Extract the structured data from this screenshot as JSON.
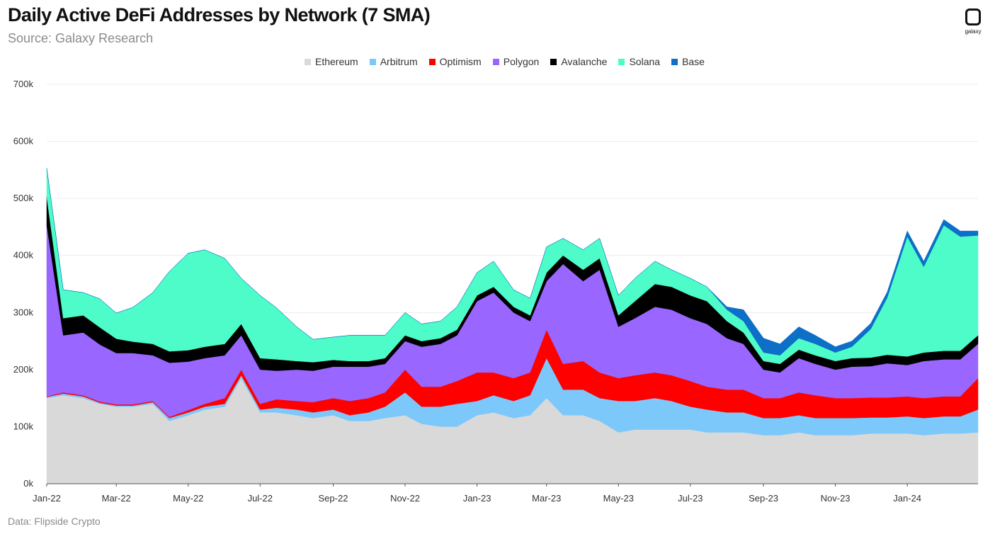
{
  "title": "Daily Active DeFi Addresses by Network (7 SMA)",
  "subtitle": "Source: Galaxy Research",
  "source_note": "Data: Flipside Crypto",
  "logo": {
    "icon": "galaxy-logo-icon",
    "text": "galaxy"
  },
  "chart_data": {
    "type": "area",
    "stacked": true,
    "title": "Daily Active DeFi Addresses by Network (7 SMA)",
    "xlabel": "",
    "ylabel": "",
    "ylim": [
      0,
      700000
    ],
    "yticks": [
      0,
      100000,
      200000,
      300000,
      400000,
      500000,
      600000,
      700000
    ],
    "ytick_labels": [
      "0k",
      "100k",
      "200k",
      "300k",
      "400k",
      "500k",
      "600k",
      "700k"
    ],
    "xtick_labels": [
      "Jan-22",
      "Mar-22",
      "May-22",
      "Jul-22",
      "Sep-22",
      "Nov-22",
      "Jan-23",
      "Mar-23",
      "May-23",
      "Jul-23",
      "Sep-23",
      "Nov-23",
      "Jan-24"
    ],
    "grid": true,
    "legend_position": "top",
    "x": [
      "2022-01-01",
      "2022-01-15",
      "2022-02-01",
      "2022-02-15",
      "2022-03-01",
      "2022-03-15",
      "2022-04-01",
      "2022-04-15",
      "2022-05-01",
      "2022-05-15",
      "2022-06-01",
      "2022-06-15",
      "2022-07-01",
      "2022-07-15",
      "2022-08-01",
      "2022-08-15",
      "2022-09-01",
      "2022-09-15",
      "2022-10-01",
      "2022-10-15",
      "2022-11-01",
      "2022-11-15",
      "2022-12-01",
      "2022-12-15",
      "2023-01-01",
      "2023-01-15",
      "2023-02-01",
      "2023-02-15",
      "2023-03-01",
      "2023-03-15",
      "2023-04-01",
      "2023-04-15",
      "2023-05-01",
      "2023-05-15",
      "2023-06-01",
      "2023-06-15",
      "2023-07-01",
      "2023-07-15",
      "2023-08-01",
      "2023-08-15",
      "2023-09-01",
      "2023-09-15",
      "2023-10-01",
      "2023-10-15",
      "2023-11-01",
      "2023-11-15",
      "2023-12-01",
      "2023-12-15",
      "2024-01-01",
      "2024-01-15",
      "2024-02-01",
      "2024-02-15",
      "2024-03-01"
    ],
    "series": [
      {
        "name": "Ethereum",
        "color": "#d9d9d9",
        "values": [
          150000,
          155000,
          150000,
          140000,
          135000,
          135000,
          140000,
          110000,
          120000,
          130000,
          135000,
          185000,
          125000,
          125000,
          120000,
          115000,
          120000,
          110000,
          110000,
          115000,
          120000,
          105000,
          100000,
          100000,
          120000,
          125000,
          115000,
          120000,
          150000,
          120000,
          120000,
          110000,
          90000,
          95000,
          95000,
          95000,
          95000,
          90000,
          90000,
          90000,
          85000,
          85000,
          90000,
          85000,
          85000,
          85000,
          88000,
          88000,
          88000,
          85000,
          88000,
          88000,
          90000
        ]
      },
      {
        "name": "Arbitrum",
        "color": "#7cc8fa",
        "values": [
          2000,
          3000,
          3000,
          2000,
          2000,
          2000,
          3000,
          5000,
          5000,
          5000,
          5000,
          5000,
          5000,
          8000,
          10000,
          10000,
          10000,
          10000,
          15000,
          20000,
          40000,
          30000,
          35000,
          40000,
          25000,
          30000,
          30000,
          35000,
          70000,
          45000,
          45000,
          40000,
          55000,
          50000,
          55000,
          50000,
          40000,
          40000,
          35000,
          35000,
          30000,
          30000,
          30000,
          30000,
          30000,
          30000,
          28000,
          28000,
          30000,
          30000,
          30000,
          30000,
          40000
        ]
      },
      {
        "name": "Optimism",
        "color": "#ff0000",
        "values": [
          1000,
          2000,
          2000,
          2000,
          2000,
          2000,
          2000,
          2000,
          4000,
          5000,
          10000,
          10000,
          10000,
          15000,
          15000,
          18000,
          20000,
          25000,
          25000,
          25000,
          40000,
          35000,
          35000,
          40000,
          50000,
          40000,
          40000,
          40000,
          50000,
          45000,
          50000,
          45000,
          40000,
          45000,
          45000,
          45000,
          45000,
          40000,
          40000,
          40000,
          35000,
          35000,
          40000,
          40000,
          35000,
          35000,
          35000,
          35000,
          35000,
          35000,
          35000,
          35000,
          55000
        ]
      },
      {
        "name": "Polygon",
        "color": "#9966ff",
        "values": [
          300000,
          100000,
          110000,
          100000,
          90000,
          90000,
          80000,
          95000,
          85000,
          80000,
          75000,
          60000,
          60000,
          50000,
          55000,
          55000,
          55000,
          60000,
          55000,
          50000,
          50000,
          70000,
          75000,
          80000,
          125000,
          140000,
          115000,
          90000,
          85000,
          175000,
          140000,
          180000,
          90000,
          100000,
          115000,
          115000,
          110000,
          110000,
          90000,
          80000,
          50000,
          45000,
          60000,
          55000,
          50000,
          55000,
          55000,
          60000,
          55000,
          65000,
          65000,
          65000,
          60000
        ]
      },
      {
        "name": "Avalanche",
        "color": "#000000",
        "values": [
          50000,
          30000,
          30000,
          30000,
          25000,
          20000,
          20000,
          20000,
          20000,
          20000,
          20000,
          20000,
          20000,
          20000,
          15000,
          15000,
          12000,
          10000,
          10000,
          10000,
          10000,
          10000,
          10000,
          10000,
          10000,
          10000,
          10000,
          10000,
          15000,
          15000,
          20000,
          20000,
          20000,
          30000,
          40000,
          40000,
          40000,
          40000,
          30000,
          20000,
          15000,
          15000,
          15000,
          15000,
          15000,
          15000,
          15000,
          15000,
          15000,
          15000,
          15000,
          15000,
          15000
        ]
      },
      {
        "name": "Solana",
        "color": "#4dfcc8",
        "values": [
          50000,
          50000,
          40000,
          50000,
          45000,
          60000,
          90000,
          140000,
          170000,
          170000,
          150000,
          80000,
          110000,
          90000,
          60000,
          40000,
          40000,
          45000,
          45000,
          40000,
          40000,
          30000,
          30000,
          40000,
          40000,
          45000,
          30000,
          30000,
          45000,
          30000,
          35000,
          35000,
          35000,
          40000,
          40000,
          30000,
          30000,
          25000,
          20000,
          20000,
          15000,
          15000,
          20000,
          20000,
          15000,
          20000,
          50000,
          100000,
          210000,
          150000,
          220000,
          200000,
          175000
        ]
      },
      {
        "name": "Base",
        "color": "#0d6fc7",
        "values": [
          0,
          0,
          0,
          0,
          0,
          0,
          0,
          0,
          0,
          0,
          0,
          0,
          0,
          0,
          0,
          0,
          0,
          0,
          0,
          0,
          0,
          0,
          0,
          0,
          0,
          0,
          0,
          0,
          0,
          0,
          0,
          0,
          0,
          0,
          0,
          0,
          0,
          0,
          5000,
          20000,
          25000,
          20000,
          20000,
          15000,
          10000,
          10000,
          10000,
          10000,
          10000,
          10000,
          10000,
          10000,
          8000
        ]
      }
    ]
  }
}
